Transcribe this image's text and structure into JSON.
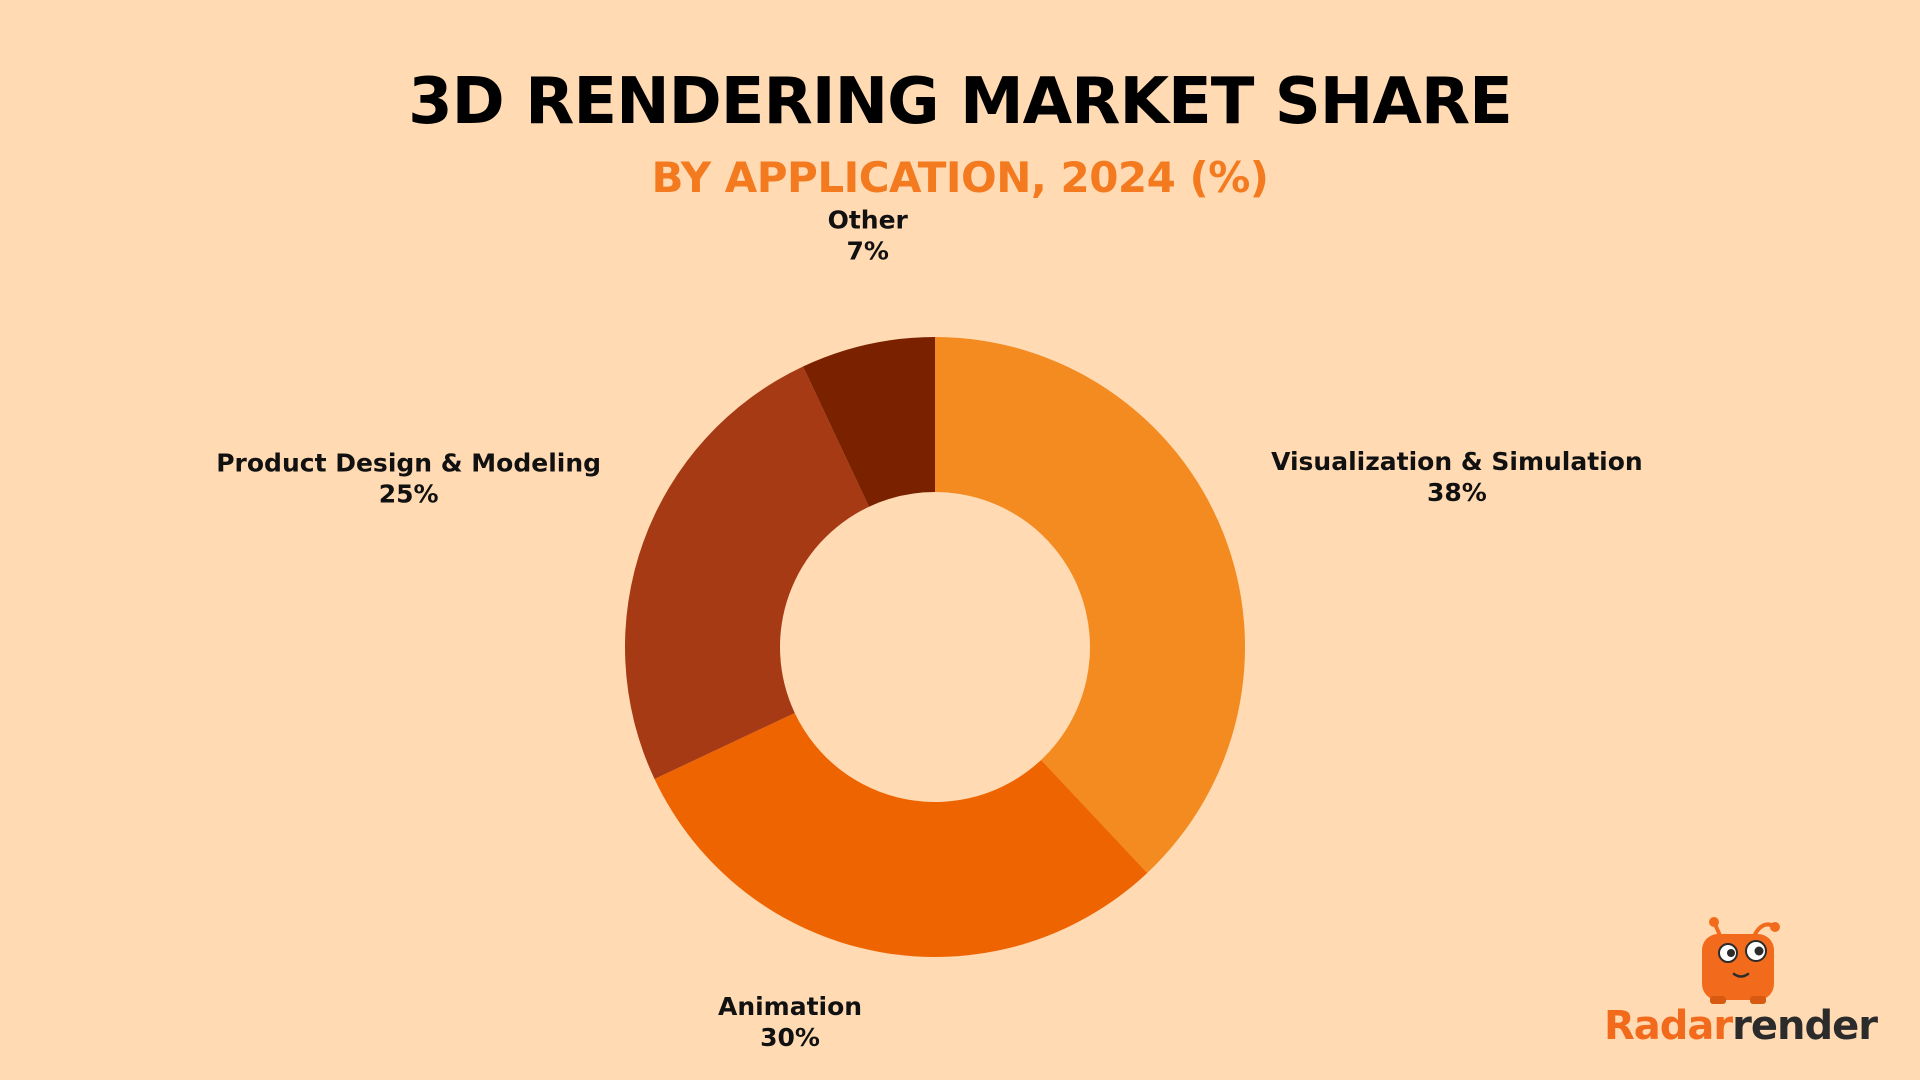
{
  "chart_data": {
    "type": "pie",
    "donut": true,
    "title": "3D RENDERING MARKET SHARE",
    "subtitle": "BY APPLICATION, 2024 (%)",
    "slices": [
      {
        "name": "Visualization & Simulation",
        "value": 38,
        "label": "38%",
        "color": "#F38B20"
      },
      {
        "name": "Animation",
        "value": 30,
        "label": "30%",
        "color": "#EE6400"
      },
      {
        "name": "Product Design & Modeling",
        "value": 25,
        "label": "25%",
        "color": "#A63A14"
      },
      {
        "name": "Other",
        "value": 7,
        "label": "7%",
        "color": "#7A2200"
      }
    ],
    "start_angle": "12 o'clock",
    "direction": "clockwise",
    "legend": "none"
  },
  "brand": {
    "name_part1": "Radar",
    "name_part2": "render",
    "logo_icon": "robot-mascot-icon",
    "colors": {
      "primary": "#F26B1D",
      "dark": "#2B2B2B"
    }
  },
  "colors": {
    "background": "#FFDAB3",
    "title": "#000000",
    "subtitle": "#F47A1F"
  }
}
